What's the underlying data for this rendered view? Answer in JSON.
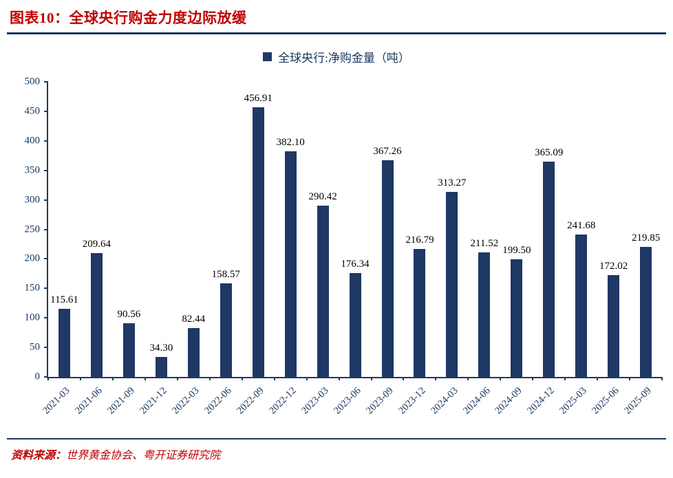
{
  "header": {
    "title": "图表10：全球央行购金力度边际放缓"
  },
  "legend": {
    "label": "全球央行:净购金量（吨）"
  },
  "footer": {
    "source_label": "资料来源：",
    "source_text": "世界黄金协会、粤开证券研究院"
  },
  "colors": {
    "bar": "#1F3864",
    "axis": "#17375E",
    "title": "#C00000",
    "value_label": "#000000",
    "background": "#FFFFFF"
  },
  "chart_data": {
    "type": "bar",
    "title": "图表10：全球央行购金力度边际放缓",
    "series_name": "全球央行:净购金量（吨）",
    "categories": [
      "2021-03",
      "2021-06",
      "2021-09",
      "2021-12",
      "2022-03",
      "2022-06",
      "2022-09",
      "2022-12",
      "2023-03",
      "2023-06",
      "2023-09",
      "2023-12",
      "2024-03",
      "2024-06",
      "2024-09",
      "2024-12",
      "2025-03",
      "2025-06",
      "2025-09"
    ],
    "values": [
      115.61,
      209.64,
      90.56,
      34.3,
      82.44,
      158.57,
      456.91,
      382.1,
      290.42,
      176.34,
      367.26,
      216.79,
      313.27,
      211.52,
      199.5,
      365.09,
      241.68,
      172.02,
      219.85
    ],
    "ylim": [
      0,
      500
    ],
    "ytick_step": 50,
    "grid": false,
    "legend_position": "top-center",
    "value_labels": true,
    "value_label_decimals": 2,
    "x_label_rotation": -45
  }
}
